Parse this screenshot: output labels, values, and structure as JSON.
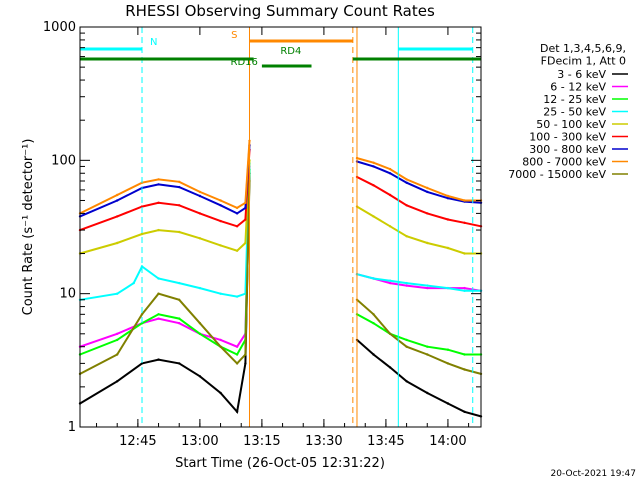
{
  "chart_data": {
    "type": "line",
    "title": "RHESSI Observing Summary Count Rates",
    "xlabel": "Start Time (26-Oct-05 12:31:22)",
    "ylabel": "Count Rate (s⁻¹ detector⁻¹)",
    "x_unit": "minutes",
    "xlim": [
      "12:31",
      "14:08"
    ],
    "ylim": [
      1,
      1000
    ],
    "yscale": "log",
    "x_ticks": [
      "12:45",
      "13:00",
      "13:15",
      "13:30",
      "13:45",
      "14:00"
    ],
    "y_ticks": [
      "1",
      "10",
      "100",
      "1000"
    ],
    "legend_header": [
      "Det 1,3,4,5,6,9,",
      "FDecim 1, Att 0"
    ],
    "legend_position": "right",
    "series": [
      {
        "name": "3 - 6 keV",
        "color": "#000000",
        "x": [
          "12:31",
          "12:40",
          "12:46",
          "12:50",
          "12:55",
          "13:00",
          "13:05",
          "13:09",
          "13:11",
          "13:12",
          "13:38",
          "13:42",
          "13:46",
          "13:50",
          "13:55",
          "14:00",
          "14:04",
          "14:08"
        ],
        "y": [
          1.5,
          2.2,
          3.0,
          3.2,
          3.0,
          2.4,
          1.8,
          1.3,
          3,
          80,
          4.5,
          3.5,
          2.8,
          2.2,
          1.8,
          1.5,
          1.3,
          1.2
        ]
      },
      {
        "name": "6 - 12 keV",
        "color": "#ff00ff",
        "x": [
          "12:31",
          "12:40",
          "12:46",
          "12:50",
          "12:55",
          "13:00",
          "13:05",
          "13:09",
          "13:11",
          "13:12",
          "13:38",
          "13:42",
          "13:46",
          "13:50",
          "13:55",
          "14:00",
          "14:04",
          "14:08"
        ],
        "y": [
          4,
          5,
          6,
          6.5,
          6,
          5,
          4.5,
          4,
          5,
          90,
          14,
          13,
          12,
          11.5,
          11,
          11,
          11,
          10.5
        ]
      },
      {
        "name": "12 - 25 keV",
        "color": "#00ff00",
        "x": [
          "12:31",
          "12:40",
          "12:46",
          "12:50",
          "12:55",
          "13:00",
          "13:05",
          "13:09",
          "13:11",
          "13:12",
          "13:38",
          "13:42",
          "13:46",
          "13:50",
          "13:55",
          "14:00",
          "14:04",
          "14:08"
        ],
        "y": [
          3.5,
          4.5,
          6,
          7,
          6.5,
          5,
          4,
          3.5,
          4.5,
          85,
          7,
          6,
          5,
          4.5,
          4,
          3.8,
          3.5,
          3.5
        ]
      },
      {
        "name": "25 - 50 keV",
        "color": "#00ffff",
        "x": [
          "12:31",
          "12:40",
          "12:44",
          "12:46",
          "12:50",
          "12:55",
          "13:00",
          "13:05",
          "13:09",
          "13:11",
          "13:12",
          "13:38",
          "13:42",
          "13:46",
          "13:50",
          "13:55",
          "14:00",
          "14:04",
          "14:08"
        ],
        "y": [
          9,
          10,
          12,
          16,
          13,
          12,
          11,
          10,
          9.5,
          10,
          95,
          14,
          13,
          12.5,
          12,
          11.5,
          11,
          10.5,
          10.5
        ]
      },
      {
        "name": "50 - 100 keV",
        "color": "#cccc00",
        "x": [
          "12:31",
          "12:40",
          "12:46",
          "12:50",
          "12:55",
          "13:00",
          "13:05",
          "13:09",
          "13:11",
          "13:12",
          "13:38",
          "13:42",
          "13:46",
          "13:50",
          "13:55",
          "14:00",
          "14:04",
          "14:08"
        ],
        "y": [
          20,
          24,
          28,
          30,
          29,
          26,
          23,
          21,
          24,
          100,
          45,
          38,
          32,
          27,
          24,
          22,
          20,
          20
        ]
      },
      {
        "name": "100 - 300 keV",
        "color": "#ff0000",
        "x": [
          "12:31",
          "12:40",
          "12:46",
          "12:50",
          "12:55",
          "13:00",
          "13:05",
          "13:09",
          "13:11",
          "13:12",
          "13:38",
          "13:42",
          "13:46",
          "13:50",
          "13:55",
          "14:00",
          "14:04",
          "14:08"
        ],
        "y": [
          30,
          38,
          45,
          48,
          46,
          40,
          35,
          32,
          36,
          120,
          75,
          65,
          55,
          46,
          40,
          36,
          34,
          32
        ]
      },
      {
        "name": "300 - 800 keV",
        "color": "#0000cc",
        "x": [
          "12:31",
          "12:40",
          "12:46",
          "12:50",
          "12:55",
          "13:00",
          "13:05",
          "13:09",
          "13:11",
          "13:12",
          "13:38",
          "13:42",
          "13:46",
          "13:50",
          "13:55",
          "14:00",
          "14:04",
          "14:08"
        ],
        "y": [
          38,
          50,
          62,
          66,
          63,
          54,
          46,
          40,
          44,
          130,
          98,
          90,
          80,
          68,
          58,
          52,
          49,
          48
        ]
      },
      {
        "name": "800 - 7000 keV",
        "color": "#ff8800",
        "x": [
          "12:31",
          "12:40",
          "12:46",
          "12:50",
          "12:55",
          "13:00",
          "13:05",
          "13:09",
          "13:11",
          "13:12",
          "13:38",
          "13:42",
          "13:46",
          "13:50",
          "13:55",
          "14:00",
          "14:04",
          "14:08"
        ],
        "y": [
          40,
          55,
          68,
          72,
          69,
          58,
          50,
          44,
          48,
          140,
          104,
          96,
          86,
          72,
          62,
          54,
          50,
          50
        ]
      },
      {
        "name": "7000 - 15000 keV",
        "color": "#808000",
        "x": [
          "12:31",
          "12:40",
          "12:46",
          "12:50",
          "12:55",
          "13:00",
          "13:05",
          "13:09",
          "13:11",
          "13:12",
          "13:38",
          "13:42",
          "13:46",
          "13:50",
          "13:55",
          "14:00",
          "14:04",
          "14:08"
        ],
        "y": [
          2.5,
          3.5,
          7,
          10,
          9,
          6,
          4,
          3,
          3.5,
          70,
          9,
          7,
          5,
          4,
          3.5,
          3,
          2.7,
          2.5
        ]
      }
    ],
    "vertical_lines": [
      {
        "x": "12:46",
        "color": "#00ffff",
        "style": "dashed"
      },
      {
        "x": "13:12",
        "color": "#ff8800",
        "style": "solid"
      },
      {
        "x": "13:37",
        "color": "#ff8800",
        "style": "dashed"
      },
      {
        "x": "13:38",
        "color": "#ff8800",
        "style": "solid"
      },
      {
        "x": "13:48",
        "color": "#00ffff",
        "style": "solid"
      },
      {
        "x": "14:06",
        "color": "#00ffff",
        "style": "dashed"
      }
    ],
    "flag_bars": [
      {
        "label": "N",
        "color": "#00ffff",
        "segments": [
          [
            "12:31",
            "12:46"
          ],
          [
            "13:48",
            "14:06"
          ]
        ]
      },
      {
        "label": "S",
        "color": "#ff8800",
        "segments": [
          [
            "13:12",
            "13:37"
          ]
        ]
      },
      {
        "label": "RD4",
        "color": "#008000",
        "segments": [
          [
            "12:31",
            "13:13"
          ],
          [
            "13:37",
            "14:08"
          ]
        ]
      },
      {
        "label": "RD16",
        "color": "#008000",
        "segments": [
          [
            "13:15",
            "13:27"
          ]
        ]
      }
    ]
  },
  "timestamp": "20-Oct-2021 19:47"
}
